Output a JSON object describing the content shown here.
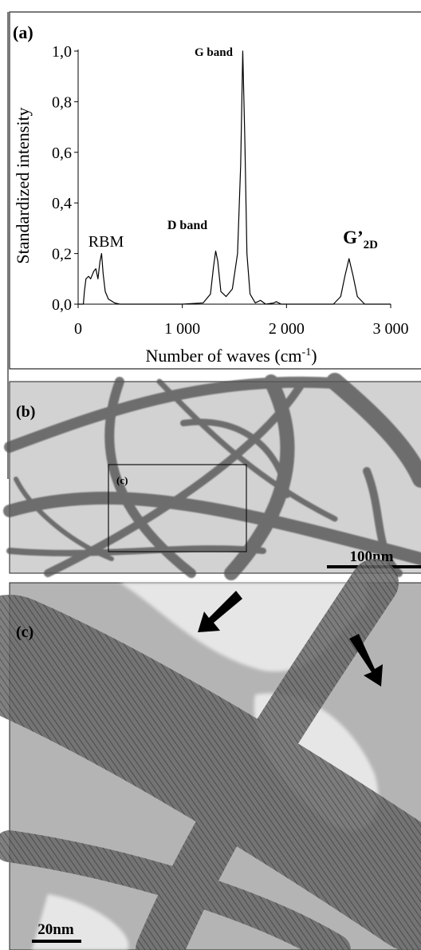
{
  "chart_data": {
    "type": "line",
    "panel_label": "(a)",
    "y_label": "Standardized intensity",
    "x_label": {
      "text": "Number of waves (cm",
      "sup": "-1",
      "tail": ")"
    },
    "annotations": [
      "RBM",
      "D band",
      "G band",
      {
        "text": "G’",
        "sub": "2D"
      }
    ],
    "color": "#000000",
    "x": [
      0,
      50,
      60,
      75,
      100,
      120,
      150,
      170,
      190,
      210,
      225,
      240,
      260,
      290,
      350,
      400,
      1000,
      1200,
      1270,
      1300,
      1320,
      1340,
      1370,
      1420,
      1480,
      1530,
      1560,
      1580,
      1600,
      1620,
      1650,
      1700,
      1750,
      1800,
      1880,
      1900,
      1950,
      2450,
      2520,
      2560,
      2600,
      2640,
      2680,
      2750,
      3000
    ],
    "values": [
      0,
      0,
      0.05,
      0.1,
      0.11,
      0.1,
      0.13,
      0.14,
      0.1,
      0.17,
      0.2,
      0.12,
      0.05,
      0.02,
      0.005,
      0,
      0,
      0.005,
      0.04,
      0.15,
      0.21,
      0.17,
      0.05,
      0.03,
      0.06,
      0.2,
      0.55,
      1.0,
      0.65,
      0.2,
      0.04,
      0.005,
      0.015,
      0,
      0.005,
      0.01,
      0,
      0,
      0.03,
      0.11,
      0.18,
      0.11,
      0.03,
      0,
      0
    ],
    "xlim": [
      0,
      3000
    ],
    "xticks": [
      0,
      {
        "value": 1000,
        "label": "1 000"
      },
      {
        "value": 2000,
        "label": "2 000"
      },
      {
        "value": 3000,
        "label": "3 000"
      }
    ],
    "ylim": [
      0,
      1
    ],
    "yticks": [
      {
        "value": 0,
        "label": "0,0"
      },
      {
        "value": 0.2,
        "label": "0,2"
      },
      {
        "value": 0.4,
        "label": "0,4"
      },
      {
        "value": 0.6,
        "label": "0,6"
      },
      {
        "value": 0.8,
        "label": "0,8"
      },
      {
        "value": 1.0,
        "label": "1,0"
      }
    ],
    "grid": false
  },
  "panel_b": {
    "label": "(b)",
    "inset_label": "(c)",
    "scale_bar": "100nm"
  },
  "panel_c": {
    "label": "(c)",
    "scale_bar": "20nm"
  }
}
